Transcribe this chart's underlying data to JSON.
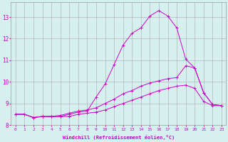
{
  "xlabel": "Windchill (Refroidissement éolien,°C)",
  "background_color": "#d6f0f0",
  "grid_color": "#aaaaaa",
  "line_color": "#cc00cc",
  "xlim": [
    -0.5,
    23.5
  ],
  "ylim": [
    8.0,
    13.7
  ],
  "xticks": [
    0,
    1,
    2,
    3,
    4,
    5,
    6,
    7,
    8,
    9,
    10,
    11,
    12,
    13,
    14,
    15,
    16,
    17,
    18,
    19,
    20,
    21,
    22,
    23
  ],
  "yticks": [
    8,
    9,
    10,
    11,
    12,
    13
  ],
  "line1_x": [
    0,
    1,
    2,
    3,
    4,
    5,
    6,
    7,
    8,
    9,
    10,
    11,
    12,
    13,
    14,
    15,
    16,
    17,
    18,
    19,
    20,
    21,
    22,
    23
  ],
  "line1_y": [
    8.5,
    8.5,
    8.35,
    8.4,
    8.4,
    8.4,
    8.4,
    8.5,
    8.55,
    8.6,
    8.7,
    8.85,
    9.0,
    9.15,
    9.3,
    9.45,
    9.6,
    9.7,
    9.8,
    9.85,
    9.7,
    9.1,
    8.9,
    8.9
  ],
  "line2_x": [
    0,
    1,
    2,
    3,
    4,
    5,
    6,
    7,
    8,
    9,
    10,
    11,
    12,
    13,
    14,
    15,
    16,
    17,
    18,
    19,
    20,
    21,
    22,
    23
  ],
  "line2_y": [
    8.5,
    8.5,
    8.35,
    8.4,
    8.4,
    8.4,
    8.5,
    8.6,
    8.65,
    9.3,
    9.9,
    10.8,
    11.7,
    12.25,
    12.5,
    13.05,
    13.3,
    13.05,
    12.5,
    11.05,
    10.65,
    9.5,
    8.95,
    8.9
  ],
  "line3_x": [
    0,
    1,
    2,
    3,
    4,
    5,
    6,
    7,
    8,
    9,
    10,
    11,
    12,
    13,
    14,
    15,
    16,
    17,
    18,
    19,
    20,
    21,
    22,
    23
  ],
  "line3_y": [
    8.5,
    8.5,
    8.35,
    8.4,
    8.4,
    8.45,
    8.55,
    8.65,
    8.7,
    8.8,
    9.0,
    9.2,
    9.45,
    9.6,
    9.8,
    9.95,
    10.05,
    10.15,
    10.2,
    10.75,
    10.65,
    9.5,
    8.95,
    8.9
  ],
  "figsize": [
    3.2,
    2.0
  ],
  "dpi": 100
}
